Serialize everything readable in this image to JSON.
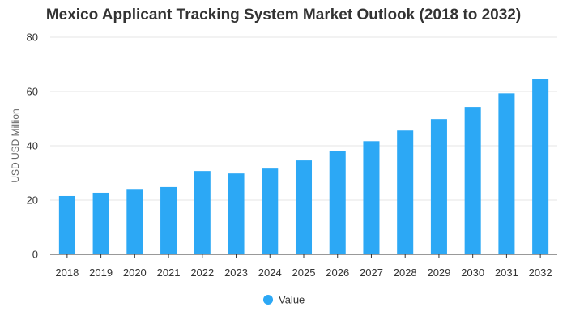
{
  "chart_data": {
    "type": "bar",
    "title": "Mexico Applicant Tracking System Market Outlook (2018 to 2032)",
    "xlabel": "",
    "ylabel": "USD USD Million",
    "categories": [
      "2018",
      "2019",
      "2020",
      "2021",
      "2022",
      "2023",
      "2024",
      "2025",
      "2026",
      "2027",
      "2028",
      "2029",
      "2030",
      "2031",
      "2032"
    ],
    "series": [
      {
        "name": "Value",
        "values": [
          21.5,
          22.7,
          24.1,
          24.8,
          30.7,
          29.8,
          31.6,
          34.6,
          38.1,
          41.7,
          45.6,
          49.8,
          54.3,
          59.3,
          64.7
        ]
      }
    ],
    "ylim": [
      0,
      80
    ],
    "yticks": [
      0,
      20,
      40,
      60,
      80
    ],
    "grid": true,
    "legend_position": "bottom-center",
    "colors": {
      "bar": "#2ca8f5",
      "grid": "#e6e6e6",
      "axis": "#333333"
    }
  }
}
